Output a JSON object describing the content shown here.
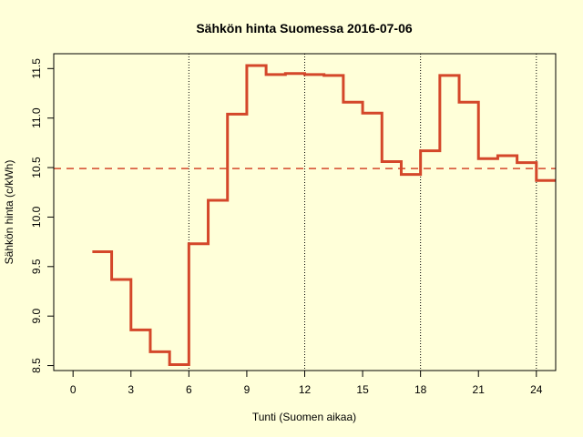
{
  "chart_data": {
    "type": "line",
    "step": true,
    "title": "Sähkön hinta Suomessa 2016-07-06",
    "xlabel": "Tunti (Suomen aikaa)",
    "ylabel": "Sähkön hinta (c/kWh)",
    "xlim": [
      -1,
      25
    ],
    "ylim": [
      8.45,
      11.65
    ],
    "x_ticks": [
      "0",
      "3",
      "6",
      "9",
      "12",
      "15",
      "18",
      "21",
      "24"
    ],
    "y_ticks": [
      "8.5",
      "9.0",
      "9.5",
      "10.0",
      "10.5",
      "11.0",
      "11.5"
    ],
    "vertical_gridlines_at": [
      6,
      12,
      18,
      24
    ],
    "reference_line": {
      "y": 10.49,
      "style": "dashed"
    },
    "series": [
      {
        "color": "#d4472a",
        "x": [
          1,
          2,
          3,
          4,
          5,
          6,
          7,
          8,
          9,
          10,
          11,
          12,
          13,
          14,
          15,
          16,
          17,
          18,
          19,
          20,
          21,
          22,
          23,
          24
        ],
        "values": [
          9.65,
          9.37,
          8.86,
          8.64,
          8.51,
          9.73,
          10.17,
          11.04,
          11.53,
          11.44,
          11.45,
          11.44,
          11.43,
          11.16,
          11.05,
          10.56,
          10.43,
          10.67,
          11.43,
          11.16,
          10.59,
          10.62,
          10.55,
          10.37
        ]
      }
    ]
  }
}
